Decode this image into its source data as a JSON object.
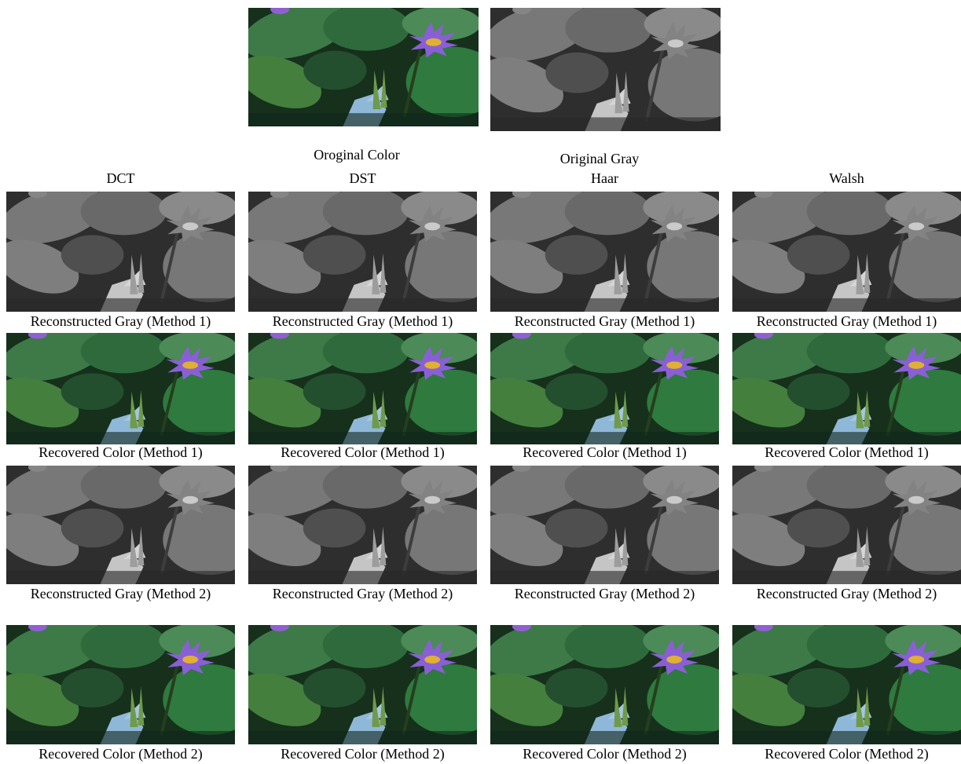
{
  "originals": {
    "color_caption": "Oroginal Color",
    "gray_caption": "Original Gray"
  },
  "grid": {
    "columns": [
      "DCT",
      "DST",
      "Haar",
      "Walsh"
    ],
    "rows": [
      {
        "captions": [
          "Reconstructed Gray (Method 1)",
          "Reconstructed Gray (Method 1)",
          "Reconstructed Gray (Method 1)",
          "Reconstructed Gray (Method 1)"
        ]
      },
      {
        "captions": [
          "Recovered Color (Method 1)",
          "Recovered Color (Method 1)",
          "Recovered Color (Method 1)",
          "Recovered Color (Method 1)"
        ]
      },
      {
        "captions": [
          "Reconstructed Gray (Method 2)",
          "Reconstructed Gray (Method 2)",
          "Reconstructed Gray (Method 2)",
          "Reconstructed Gray (Method 2)"
        ]
      },
      {
        "captions": [
          "Recovered Color (Method 2)",
          "Recovered Color (Method 2)",
          "Recovered Color (Method 2)",
          "Recovered Color (Method 2)"
        ]
      }
    ]
  }
}
